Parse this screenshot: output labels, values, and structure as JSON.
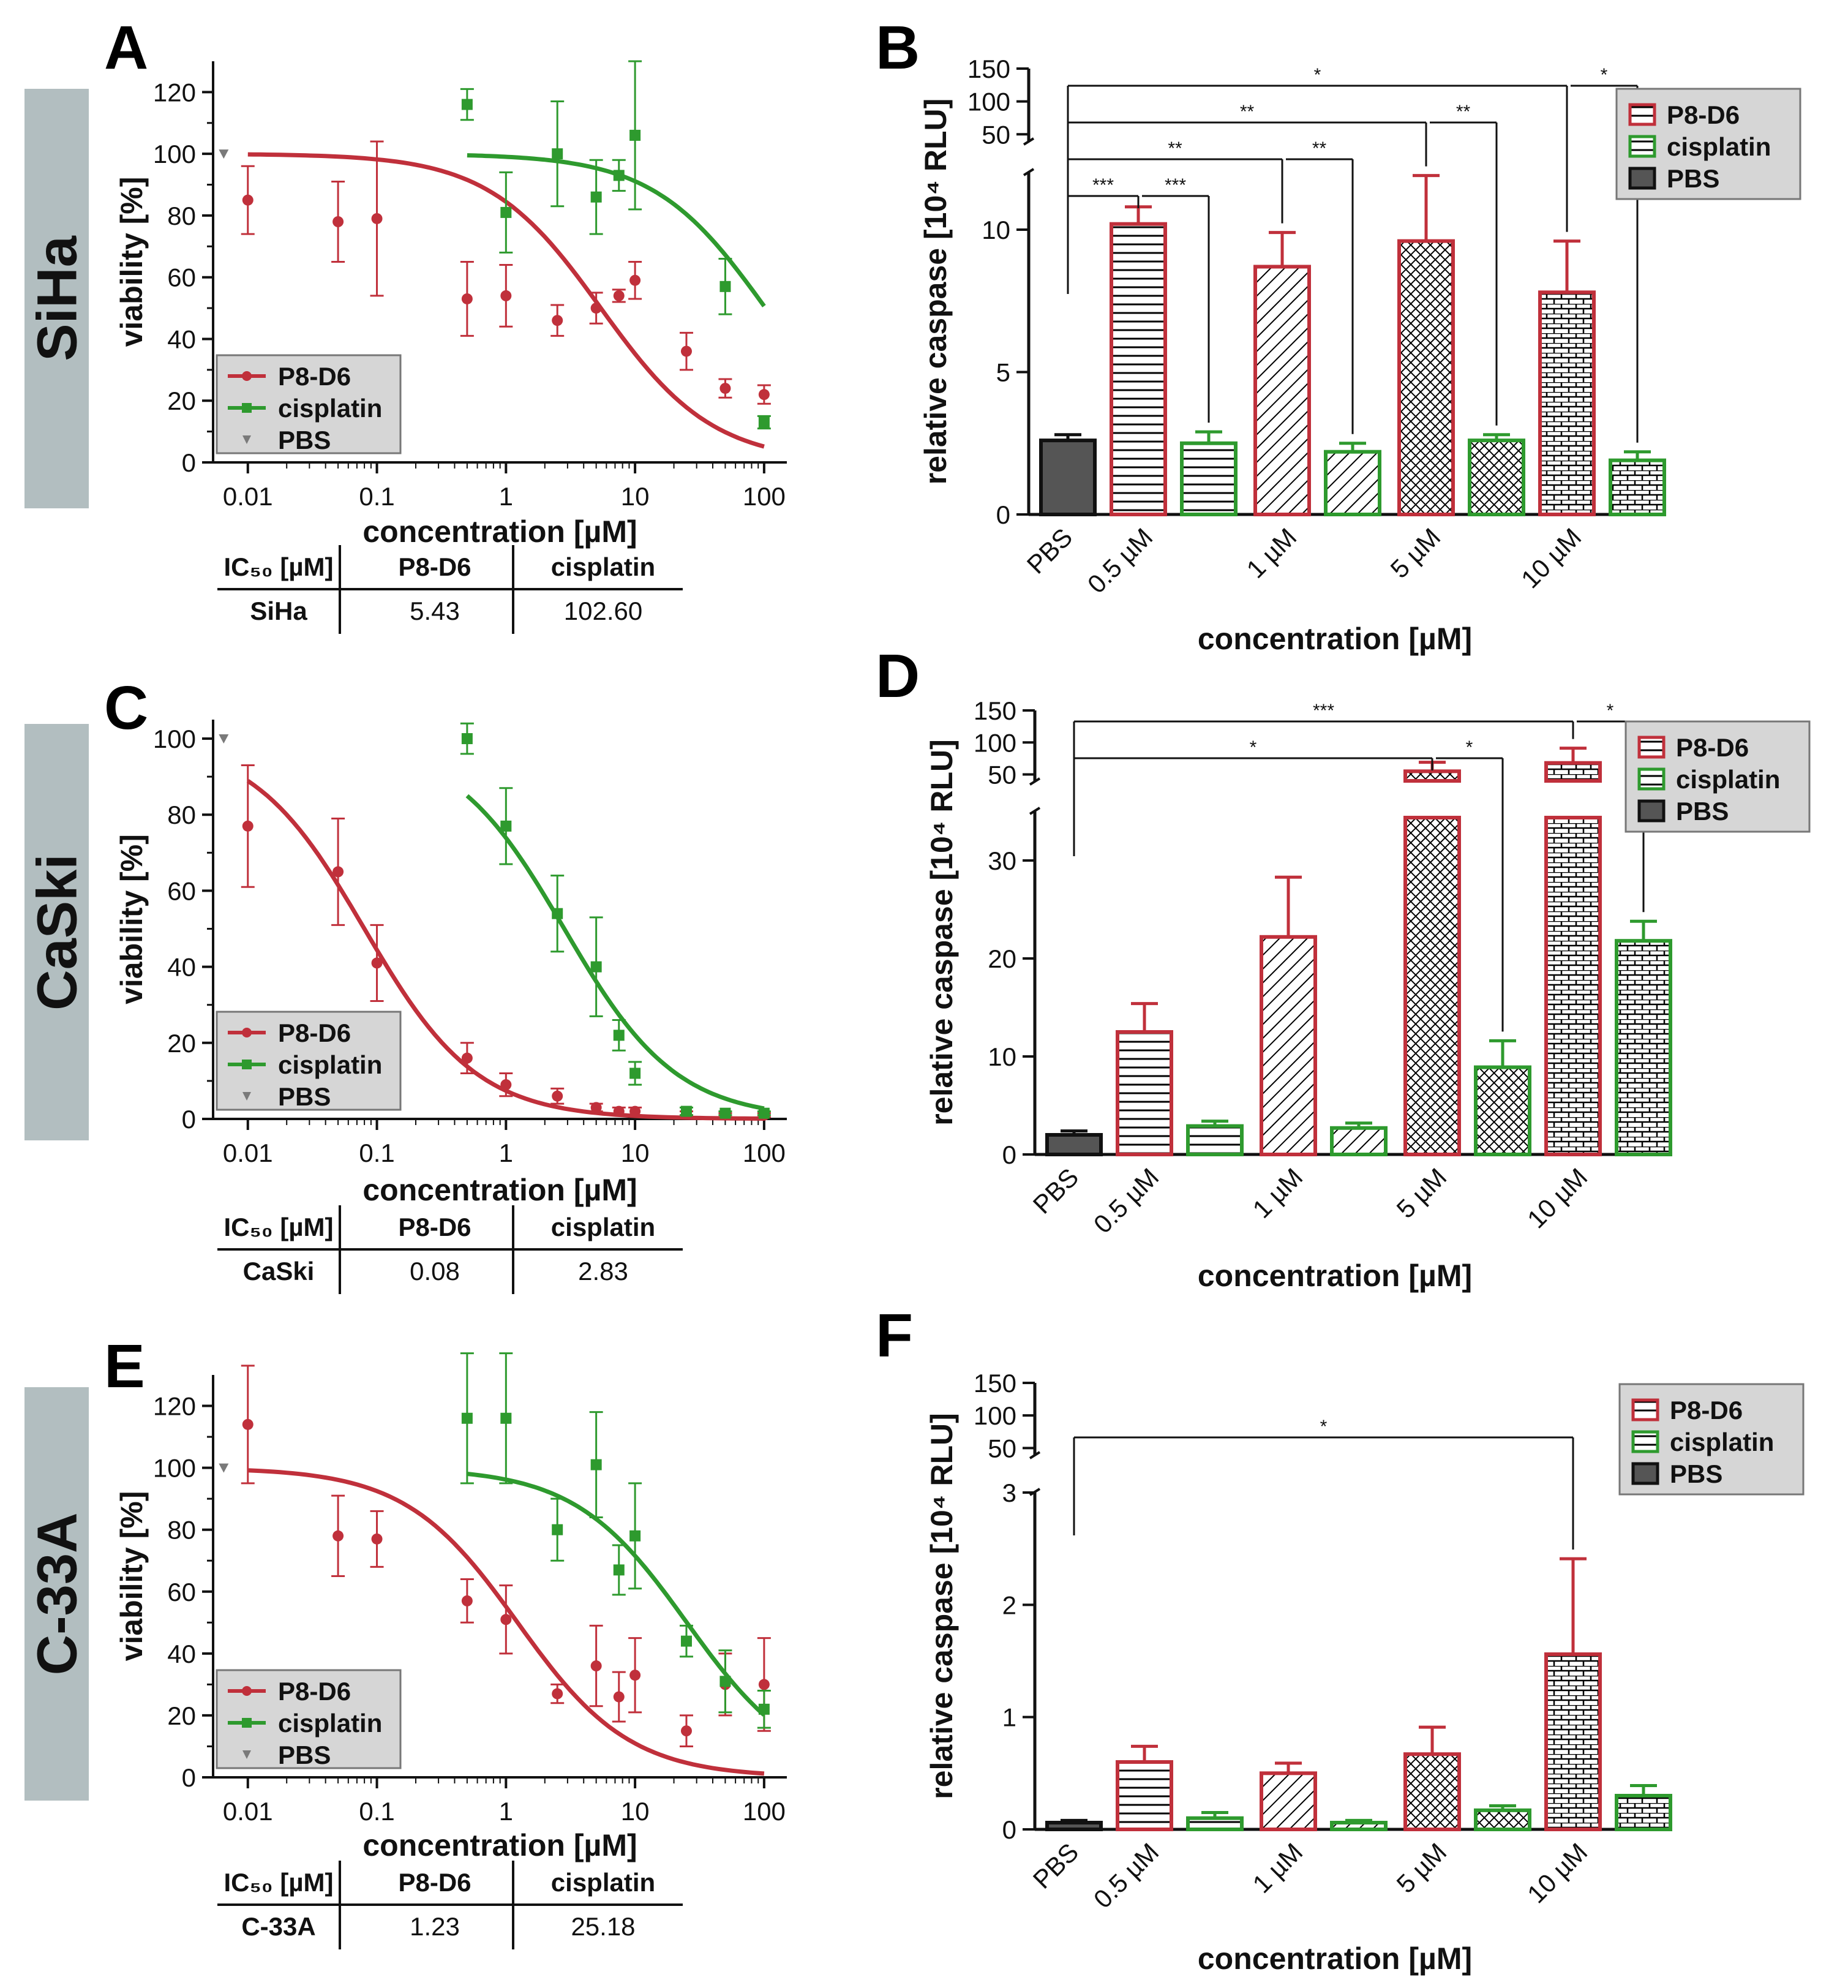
{
  "colors": {
    "p8d6": "#c0303b",
    "cisplatin": "#2e9a2e",
    "pbs": "#555555",
    "pbs_point": "#7a7a7a",
    "row_label_bg": "#b2bec0",
    "legend_bg": "#d6d6d6"
  },
  "row_labels": [
    "SiHa",
    "CaSki",
    "C-33A"
  ],
  "chart_data": [
    {
      "panel": "A",
      "cell_line": "SiHa",
      "type": "scatter",
      "xlabel": "concentration [µM]",
      "ylabel": "viability [%]",
      "xscale": "log",
      "xlim": [
        0.006,
        150
      ],
      "ylim": [
        0,
        130
      ],
      "xticks": [
        0.01,
        0.1,
        1,
        10,
        100
      ],
      "xtick_labels": [
        "0.01",
        "0.1",
        "1",
        "10",
        "100"
      ],
      "yticks": [
        0,
        20,
        40,
        60,
        80,
        100,
        120
      ],
      "ytick_labels": [
        "0",
        "20",
        "40",
        "60",
        "80",
        "100",
        "120"
      ],
      "legend": [
        "P8-D6",
        "cisplatin",
        "PBS"
      ],
      "legend_position": "bottom-left",
      "series": [
        {
          "name": "P8-D6",
          "x": [
            0.01,
            0.05,
            0.1,
            0.5,
            1,
            2.5,
            5,
            7.5,
            10,
            25,
            50,
            100
          ],
          "y": [
            85,
            78,
            79,
            53,
            54,
            46,
            50,
            54,
            59,
            36,
            24,
            22
          ],
          "err": [
            11,
            13,
            25,
            12,
            10,
            5,
            5,
            2,
            6,
            6,
            3,
            3
          ],
          "fit_ic50": 5.43,
          "fit_range": [
            0.01,
            100
          ]
        },
        {
          "name": "cisplatin",
          "x": [
            0.5,
            1,
            2.5,
            5,
            7.5,
            10,
            50,
            100
          ],
          "y": [
            116,
            81,
            100,
            86,
            93,
            106,
            57,
            13
          ],
          "err": [
            5,
            13,
            17,
            12,
            5,
            24,
            9,
            2
          ],
          "fit_ic50": 102.6,
          "fit_range": [
            0.5,
            100
          ]
        },
        {
          "name": "PBS",
          "x": [
            0.0065
          ],
          "y": [
            100
          ],
          "err": [
            0
          ]
        }
      ],
      "ic50_table": {
        "header": [
          "IC₅₀ [µM]",
          "P8-D6",
          "cisplatin"
        ],
        "row": [
          "SiHa",
          "5.43",
          "102.60"
        ]
      }
    },
    {
      "panel": "C",
      "cell_line": "CaSki",
      "type": "scatter",
      "xlabel": "concentration [µM]",
      "ylabel": "viability [%]",
      "xscale": "log",
      "xlim": [
        0.006,
        150
      ],
      "ylim": [
        0,
        105
      ],
      "xticks": [
        0.01,
        0.1,
        1,
        10,
        100
      ],
      "xtick_labels": [
        "0.01",
        "0.1",
        "1",
        "10",
        "100"
      ],
      "yticks": [
        0,
        20,
        40,
        60,
        80,
        100
      ],
      "ytick_labels": [
        "0",
        "20",
        "40",
        "60",
        "80",
        "100"
      ],
      "legend": [
        "P8-D6",
        "cisplatin",
        "PBS"
      ],
      "legend_position": "bottom-left",
      "series": [
        {
          "name": "P8-D6",
          "x": [
            0.01,
            0.05,
            0.1,
            0.5,
            1,
            2.5,
            5,
            7.5,
            10,
            25,
            50,
            100
          ],
          "y": [
            77,
            65,
            41,
            16,
            9,
            6,
            3,
            2,
            2,
            1.5,
            1,
            1
          ],
          "err": [
            16,
            14,
            10,
            4,
            3,
            2,
            1,
            1,
            1,
            0.5,
            0.5,
            0.5
          ],
          "fit_ic50": 0.08,
          "fit_range": [
            0.01,
            100
          ]
        },
        {
          "name": "cisplatin",
          "x": [
            0.5,
            1,
            2.5,
            5,
            7.5,
            10,
            25,
            50,
            100
          ],
          "y": [
            100,
            77,
            54,
            40,
            22,
            12,
            2,
            1.5,
            1.5
          ],
          "err": [
            4,
            10,
            10,
            13,
            4,
            3,
            1,
            0.5,
            0.5
          ],
          "fit_ic50": 2.83,
          "fit_range": [
            0.5,
            100
          ]
        },
        {
          "name": "PBS",
          "x": [
            0.0065
          ],
          "y": [
            100
          ],
          "err": [
            0
          ]
        }
      ],
      "ic50_table": {
        "header": [
          "IC₅₀ [µM]",
          "P8-D6",
          "cisplatin"
        ],
        "row": [
          "CaSki",
          "0.08",
          "2.83"
        ]
      }
    },
    {
      "panel": "E",
      "cell_line": "C-33A",
      "type": "scatter",
      "xlabel": "concentration [µM]",
      "ylabel": "viability [%]",
      "xscale": "log",
      "xlim": [
        0.006,
        150
      ],
      "ylim": [
        0,
        130
      ],
      "xticks": [
        0.01,
        0.1,
        1,
        10,
        100
      ],
      "xtick_labels": [
        "0.01",
        "0.1",
        "1",
        "10",
        "100"
      ],
      "yticks": [
        0,
        20,
        40,
        60,
        80,
        100,
        120
      ],
      "ytick_labels": [
        "0",
        "20",
        "40",
        "60",
        "80",
        "100",
        "120"
      ],
      "legend": [
        "P8-D6",
        "cisplatin",
        "PBS"
      ],
      "legend_position": "bottom-left",
      "series": [
        {
          "name": "P8-D6",
          "x": [
            0.01,
            0.05,
            0.1,
            0.5,
            1,
            2.5,
            5,
            7.5,
            10,
            25,
            50,
            100
          ],
          "y": [
            114,
            78,
            77,
            57,
            51,
            27,
            36,
            26,
            33,
            15,
            30,
            30
          ],
          "err": [
            19,
            13,
            9,
            7,
            11,
            3,
            13,
            8,
            12,
            5,
            10,
            15
          ],
          "fit_ic50": 1.23,
          "fit_range": [
            0.01,
            100
          ]
        },
        {
          "name": "cisplatin",
          "x": [
            0.5,
            1,
            2.5,
            5,
            7.5,
            10,
            25,
            50,
            100
          ],
          "y": [
            116,
            116,
            80,
            101,
            67,
            78,
            44,
            31,
            22
          ],
          "err": [
            21,
            21,
            10,
            17,
            8,
            17,
            5,
            10,
            6
          ],
          "fit_ic50": 25.18,
          "fit_range": [
            0.5,
            100
          ]
        },
        {
          "name": "PBS",
          "x": [
            0.0065
          ],
          "y": [
            100
          ],
          "err": [
            0
          ]
        }
      ],
      "ic50_table": {
        "header": [
          "IC₅₀ [µM]",
          "P8-D6",
          "cisplatin"
        ],
        "row": [
          "C-33A",
          "1.23",
          "25.18"
        ]
      }
    },
    {
      "panel": "B",
      "cell_line": "SiHa",
      "type": "bar",
      "xlabel": "concentration [µM]",
      "ylabel": "relative caspase [10⁴ RLU]",
      "categories": [
        "PBS",
        "0.5 µM",
        "1 µM",
        "5 µM",
        "10 µM"
      ],
      "ylim_lower": [
        0,
        12
      ],
      "yticks_lower": [
        0,
        5,
        10
      ],
      "ytick_labels_lower": [
        "0",
        "5",
        "10"
      ],
      "ylim_upper": [
        40,
        150
      ],
      "yticks_upper": [
        50,
        100,
        150
      ],
      "ytick_labels_upper": [
        "50",
        "100",
        "150"
      ],
      "legend": [
        "P8-D6",
        "cisplatin",
        "PBS"
      ],
      "legend_position": "top-right",
      "series": [
        {
          "name": "PBS",
          "values": [
            2.6,
            null,
            null,
            null,
            null
          ],
          "err": [
            0.2,
            null,
            null,
            null,
            null
          ]
        },
        {
          "name": "P8-D6",
          "values": [
            null,
            10.2,
            8.7,
            9.6,
            7.8
          ],
          "err": [
            null,
            0.6,
            1.2,
            2.3,
            1.8
          ]
        },
        {
          "name": "cisplatin",
          "values": [
            null,
            2.5,
            2.2,
            2.6,
            1.9
          ],
          "err": [
            null,
            0.4,
            0.3,
            0.2,
            0.3
          ]
        }
      ],
      "significance": [
        {
          "stars": "***",
          "from": "PBS",
          "to": "0.5 µM P8-D6",
          "tier": 1
        },
        {
          "stars": "***",
          "from": "0.5 µM P8-D6",
          "to": "0.5 µM cisplatin",
          "tier": 1
        },
        {
          "stars": "**",
          "from": "PBS",
          "to": "1 µM P8-D6",
          "tier": 2
        },
        {
          "stars": "**",
          "from": "1 µM P8-D6",
          "to": "1 µM cisplatin",
          "tier": 2
        },
        {
          "stars": "**",
          "from": "PBS",
          "to": "5 µM P8-D6",
          "tier": 3
        },
        {
          "stars": "**",
          "from": "5 µM P8-D6",
          "to": "5 µM cisplatin",
          "tier": 3
        },
        {
          "stars": "*",
          "from": "PBS",
          "to": "10 µM P8-D6",
          "tier": 4
        },
        {
          "stars": "*",
          "from": "10 µM P8-D6",
          "to": "10 µM cisplatin",
          "tier": 4
        }
      ]
    },
    {
      "panel": "D",
      "cell_line": "CaSki",
      "type": "bar",
      "xlabel": "concentration [µM]",
      "ylabel": "relative caspase [10⁴ RLU]",
      "categories": [
        "PBS",
        "0.5 µM",
        "1 µM",
        "5 µM",
        "10 µM"
      ],
      "ylim_lower": [
        0,
        35
      ],
      "yticks_lower": [
        0,
        10,
        20,
        30
      ],
      "ytick_labels_lower": [
        "0",
        "10",
        "20",
        "30"
      ],
      "ylim_upper": [
        40,
        150
      ],
      "yticks_upper": [
        50,
        100,
        150
      ],
      "ytick_labels_upper": [
        "50",
        "100",
        "150"
      ],
      "legend": [
        "P8-D6",
        "cisplatin",
        "PBS"
      ],
      "legend_position": "top-right",
      "series": [
        {
          "name": "PBS",
          "values": [
            2.0,
            null,
            null,
            null,
            null
          ],
          "err": [
            0.4,
            null,
            null,
            null,
            null
          ]
        },
        {
          "name": "P8-D6",
          "values": [
            null,
            12.5,
            22.2,
            55,
            68
          ],
          "err": [
            null,
            2.9,
            6.1,
            14,
            23
          ]
        },
        {
          "name": "cisplatin",
          "values": [
            null,
            2.9,
            2.7,
            8.9,
            21.8
          ],
          "err": [
            null,
            0.5,
            0.5,
            2.7,
            2.0
          ]
        }
      ],
      "significance": [
        {
          "stars": "*",
          "from": "PBS",
          "to": "5 µM P8-D6",
          "tier": 1
        },
        {
          "stars": "*",
          "from": "5 µM P8-D6",
          "to": "5 µM cisplatin",
          "tier": 1
        },
        {
          "stars": "***",
          "from": "PBS",
          "to": "10 µM P8-D6",
          "tier": 2
        },
        {
          "stars": "*",
          "from": "10 µM P8-D6",
          "to": "10 µM cisplatin",
          "tier": 2
        }
      ]
    },
    {
      "panel": "F",
      "cell_line": "C-33A",
      "type": "bar",
      "xlabel": "concentration [µM]",
      "ylabel": "relative caspase [10⁴ RLU]",
      "categories": [
        "PBS",
        "0.5 µM",
        "1 µM",
        "5 µM",
        "10 µM"
      ],
      "ylim_lower": [
        0,
        3
      ],
      "yticks_lower": [
        0,
        1,
        2,
        3
      ],
      "ytick_labels_lower": [
        "0",
        "1",
        "2",
        "3"
      ],
      "ylim_upper": [
        40,
        150
      ],
      "yticks_upper": [
        50,
        100,
        150
      ],
      "ytick_labels_upper": [
        "50",
        "100",
        "150"
      ],
      "legend": [
        "P8-D6",
        "cisplatin",
        "PBS"
      ],
      "legend_position": "top-right",
      "series": [
        {
          "name": "PBS",
          "values": [
            0.06,
            null,
            null,
            null,
            null
          ],
          "err": [
            0.02,
            null,
            null,
            null,
            null
          ]
        },
        {
          "name": "P8-D6",
          "values": [
            null,
            0.6,
            0.5,
            0.67,
            1.56
          ],
          "err": [
            null,
            0.14,
            0.09,
            0.24,
            0.85
          ]
        },
        {
          "name": "cisplatin",
          "values": [
            null,
            0.1,
            0.06,
            0.17,
            0.3
          ],
          "err": [
            null,
            0.05,
            0.02,
            0.04,
            0.09
          ]
        }
      ],
      "significance": [
        {
          "stars": "*",
          "from": "PBS",
          "to": "10 µM P8-D6",
          "tier": 1
        }
      ]
    }
  ]
}
